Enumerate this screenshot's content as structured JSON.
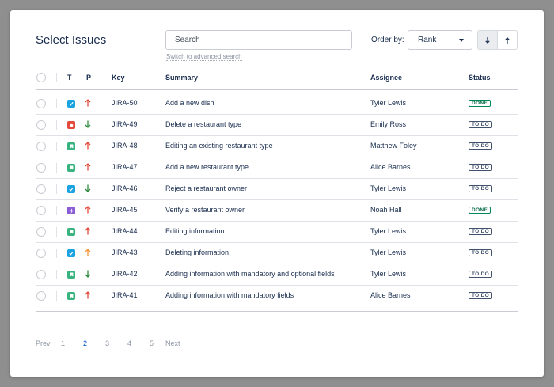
{
  "dialog": {
    "title": "Select Issues",
    "search": {
      "placeholder": "Search",
      "value": ""
    },
    "advanced_link": "Switch to advanced search",
    "order_label": "Order by:",
    "order_value": "Rank",
    "sort_desc_icon": "arrow-down-icon",
    "sort_asc_icon": "arrow-up-icon"
  },
  "table": {
    "headers": {
      "type": "T",
      "priority": "P",
      "key": "Key",
      "summary": "Summary",
      "assignee": "Assignee",
      "status": "Status"
    },
    "rows": [
      {
        "type": "task",
        "priority": "high",
        "key": "JIRA-50",
        "summary": "Add a new dish",
        "assignee": "Tyler Lewis",
        "status": "DONE"
      },
      {
        "type": "bug",
        "priority": "low",
        "key": "JIRA-49",
        "summary": "Delete a restaurant type",
        "assignee": "Emily Ross",
        "status": "TO DO"
      },
      {
        "type": "story",
        "priority": "high",
        "key": "JIRA-48",
        "summary": "Editing an existing restaurant type",
        "assignee": "Matthew Foley",
        "status": "TO DO"
      },
      {
        "type": "story",
        "priority": "high",
        "key": "JIRA-47",
        "summary": "Add a new restaurant type",
        "assignee": "Alice Barnes",
        "status": "TO DO"
      },
      {
        "type": "task",
        "priority": "low",
        "key": "JIRA-46",
        "summary": "Reject a restaurant owner",
        "assignee": "Tyler Lewis",
        "status": "TO DO"
      },
      {
        "type": "epic",
        "priority": "high",
        "key": "JIRA-45",
        "summary": "Verify a restaurant owner",
        "assignee": "Noah Hall",
        "status": "DONE"
      },
      {
        "type": "story",
        "priority": "high",
        "key": "JIRA-44",
        "summary": "Editing information",
        "assignee": "Tyler Lewis",
        "status": "TO DO"
      },
      {
        "type": "task",
        "priority": "medium",
        "key": "JIRA-43",
        "summary": "Deleting information",
        "assignee": "Tyler Lewis",
        "status": "TO DO"
      },
      {
        "type": "story",
        "priority": "low",
        "key": "JIRA-42",
        "summary": "Adding information with mandatory and optional fields",
        "assignee": "Tyler Lewis",
        "status": "TO DO"
      },
      {
        "type": "story",
        "priority": "high",
        "key": "JIRA-41",
        "summary": "Adding information with mandatory fields",
        "assignee": "Alice Barnes",
        "status": "TO DO"
      }
    ]
  },
  "pagination": {
    "prev": "Prev",
    "pages": [
      "1",
      "2",
      "3",
      "4",
      "5"
    ],
    "current": "2",
    "next": "Next"
  },
  "colors": {
    "task": "#1aa3e0",
    "bug": "#e5493a",
    "story": "#36b37e",
    "epic": "#8a5cd6",
    "priority_high": "#e5493a",
    "priority_medium": "#f79232",
    "priority_low": "#2c8a3d"
  }
}
